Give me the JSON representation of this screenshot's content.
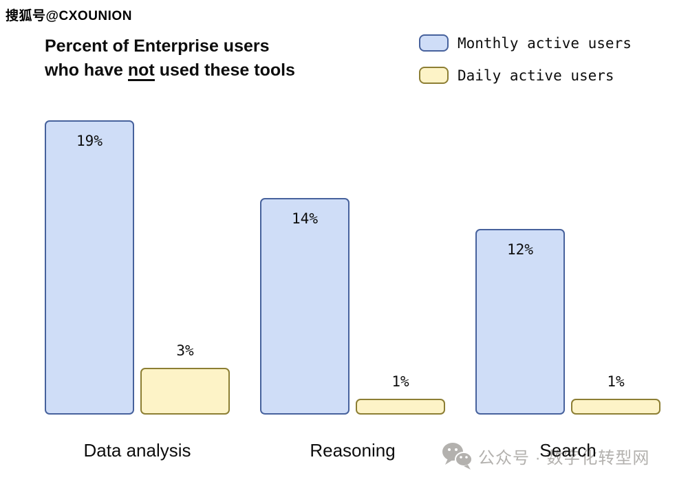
{
  "watermarks": {
    "top_left": "搜狐号@CXOUNION",
    "bottom": "公众号 · 数字化转型网"
  },
  "header": {
    "title_line1": "Percent of Enterprise users",
    "title_line2_pre": "who have ",
    "title_line2_underlined": "not",
    "title_line2_post": " used these tools"
  },
  "chart_data": {
    "type": "bar",
    "title": "Percent of Enterprise users who have not used these tools",
    "categories": [
      "Data analysis",
      "Reasoning",
      "Search"
    ],
    "series": [
      {
        "name": "Monthly active users",
        "values": [
          19,
          14,
          12
        ],
        "fill": "#cfddf7",
        "stroke": "#46619c"
      },
      {
        "name": "Daily active users",
        "values": [
          3,
          1,
          1
        ],
        "fill": "#fdf3c7",
        "stroke": "#8c7e33"
      }
    ],
    "unit": "%",
    "value_label_format": "{v}%",
    "ylim": [
      0,
      19
    ],
    "grid": false,
    "axes_visible": false,
    "legend_position": "top-right"
  },
  "colors": {
    "text": "#0d0d0d",
    "watermark_gray": "#b3b1ae",
    "background": "#ffffff"
  }
}
